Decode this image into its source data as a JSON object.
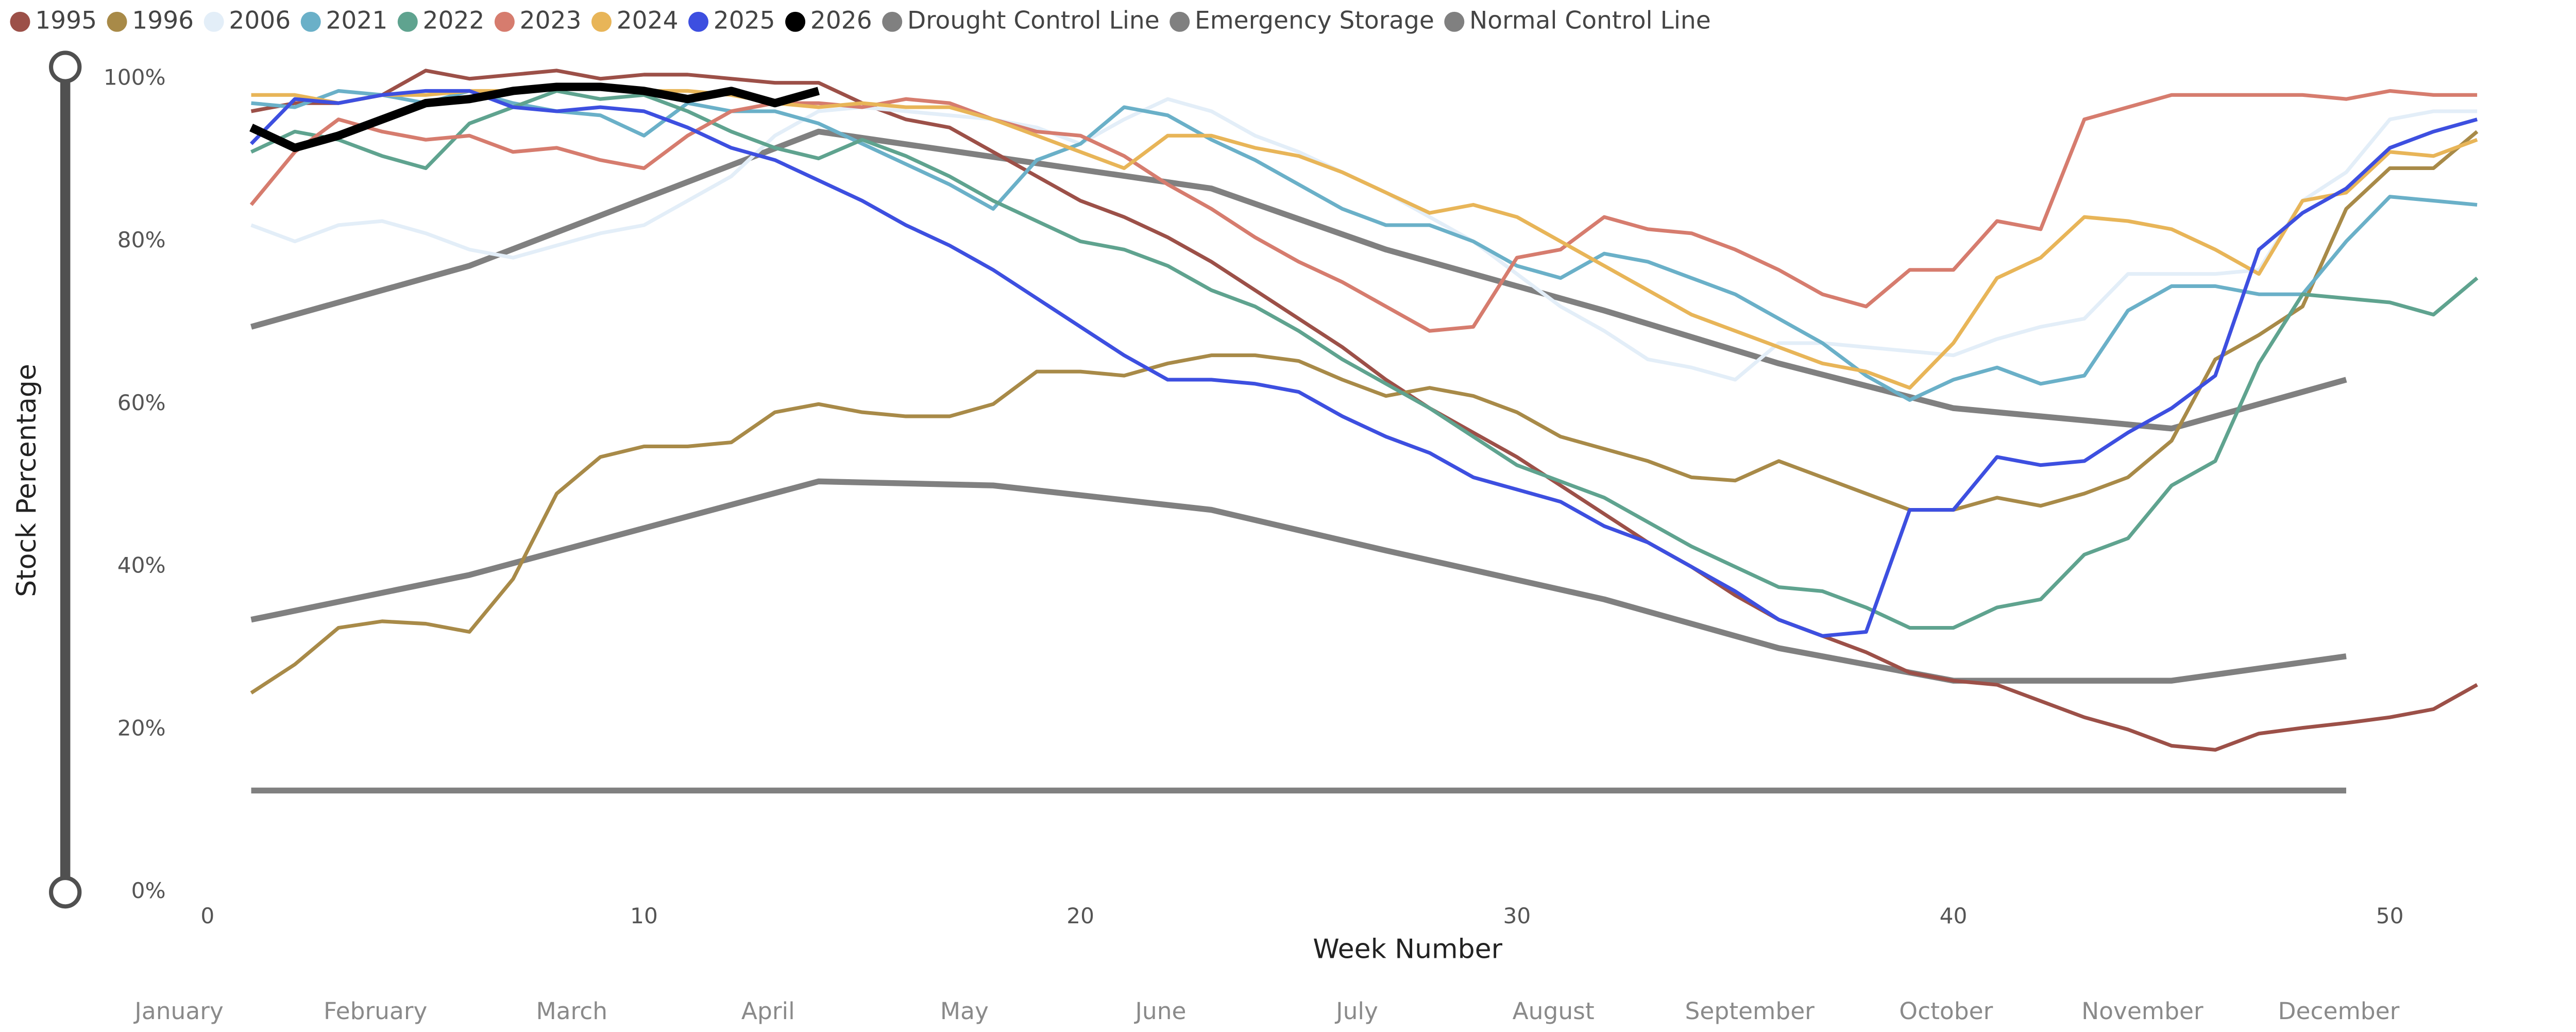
{
  "chart_data": {
    "type": "line",
    "x_label": "Week Number",
    "y_label": "Stock Percentage",
    "xlim": [
      0,
      52
    ],
    "xticks": [
      0,
      10,
      20,
      30,
      40,
      50
    ],
    "ylim": [
      0,
      100
    ],
    "yticks": [
      {
        "value": 0,
        "label": "0%"
      },
      {
        "value": 20,
        "label": "20%"
      },
      {
        "value": 40,
        "label": "40%"
      },
      {
        "value": 60,
        "label": "60%"
      },
      {
        "value": 80,
        "label": "80%"
      },
      {
        "value": 100,
        "label": "100%"
      }
    ],
    "grid": false,
    "legend": "top-left",
    "month_labels": [
      "January",
      "February",
      "March",
      "April",
      "May",
      "June",
      "July",
      "August",
      "September",
      "October",
      "November",
      "December"
    ],
    "x": [
      1,
      2,
      3,
      4,
      5,
      6,
      7,
      8,
      9,
      10,
      11,
      12,
      13,
      14,
      15,
      16,
      17,
      18,
      19,
      20,
      21,
      22,
      23,
      24,
      25,
      26,
      27,
      28,
      29,
      30,
      31,
      32,
      33,
      34,
      35,
      36,
      37,
      38,
      39,
      40,
      41,
      42,
      43,
      44,
      45,
      46,
      47,
      48,
      49,
      50,
      51,
      52
    ],
    "series": [
      {
        "name": "1995",
        "color": "#9c5048",
        "values": [
          96,
          97,
          97,
          98,
          101,
          100,
          100.5,
          101,
          100,
          100.5,
          100.5,
          100,
          99.5,
          99.5,
          97,
          95,
          94,
          91,
          88,
          85,
          83,
          80.5,
          77.5,
          74,
          70.5,
          67,
          63,
          59.5,
          56.5,
          53.5,
          50,
          46.5,
          43,
          40,
          36.5,
          33.5,
          31.5,
          29.5,
          27,
          26,
          25.5,
          23.5,
          21.5,
          20,
          18,
          17.5,
          19.5,
          20.2,
          20.8,
          21.5,
          22.5,
          25.5
        ]
      },
      {
        "name": "1996",
        "color": "#a88a48",
        "values": [
          24.5,
          28,
          32.5,
          33.3,
          33,
          32,
          38.5,
          49,
          53.5,
          54.8,
          54.8,
          55.3,
          59,
          60,
          59,
          58.5,
          58.5,
          60,
          64,
          64,
          63.5,
          65,
          66,
          66,
          65.3,
          63,
          61,
          62,
          61,
          59,
          56,
          54.5,
          53,
          51,
          50.6,
          53,
          51,
          49,
          47,
          47,
          48.5,
          47.5,
          49,
          51,
          55.5,
          65.5,
          68.5,
          72,
          84,
          89,
          89,
          93.5
        ]
      },
      {
        "name": "2006",
        "color": "#e3eef8",
        "values": [
          82,
          80,
          82,
          82.5,
          81,
          79,
          78,
          79.5,
          81,
          82,
          85,
          88,
          93,
          96,
          96.5,
          96,
          95.5,
          95,
          94,
          92,
          95,
          97.5,
          96,
          93,
          91,
          88.5,
          86,
          83,
          80,
          76,
          72,
          69,
          65.5,
          64.5,
          63,
          67.5,
          67.5,
          67,
          66.5,
          66,
          68,
          69.5,
          70.5,
          76,
          76,
          76,
          76.5,
          85,
          88.5,
          95,
          96,
          96
        ]
      },
      {
        "name": "2021",
        "color": "#6ab0c8",
        "values": [
          97,
          96.5,
          98.5,
          98,
          97,
          98.5,
          97,
          96,
          95.5,
          93,
          97,
          96,
          96,
          94.5,
          92,
          89.5,
          87,
          84,
          90,
          92,
          96.5,
          95.5,
          92.5,
          90,
          87,
          84,
          82,
          82,
          80,
          77,
          75.5,
          78.5,
          77.5,
          75.5,
          73.5,
          70.5,
          67.5,
          63.5,
          60.5,
          63,
          64.5,
          62.5,
          63.5,
          71.5,
          74.5,
          74.5,
          73.5,
          73.5,
          80,
          85.5,
          85,
          84.5
        ]
      },
      {
        "name": "2022",
        "color": "#5fa38f",
        "values": [
          91,
          93.5,
          92.5,
          90.5,
          89,
          94.5,
          96.5,
          98.5,
          97.5,
          98,
          96,
          93.5,
          91.5,
          90.2,
          92.5,
          90.5,
          88,
          85,
          82.5,
          80,
          79,
          77,
          74,
          72,
          69,
          65.5,
          62.5,
          59.5,
          56,
          52.5,
          50.5,
          48.5,
          45.5,
          42.5,
          40,
          37.5,
          37,
          35,
          32.5,
          32.5,
          35,
          36,
          41.5,
          43.5,
          50,
          53,
          65,
          73.5,
          73,
          72.5,
          71,
          75.5
        ]
      },
      {
        "name": "2023",
        "color": "#d67c6e",
        "values": [
          84.5,
          91,
          95,
          93.5,
          92.5,
          93,
          91,
          91.5,
          90,
          89,
          93,
          96,
          97,
          97,
          96.5,
          97.5,
          97,
          95,
          93.5,
          93,
          90.5,
          87,
          84,
          80.5,
          77.5,
          75,
          72,
          69,
          69.5,
          78,
          79,
          83,
          81.5,
          81,
          79,
          76.5,
          73.5,
          72,
          76.5,
          76.5,
          82.5,
          81.5,
          95,
          96.5,
          98,
          98,
          98,
          98,
          97.5,
          98.5,
          98,
          98
        ]
      },
      {
        "name": "2024",
        "color": "#e8b558",
        "values": [
          98,
          98,
          97,
          98,
          98,
          98.5,
          98.5,
          99,
          99,
          98.5,
          98.5,
          98,
          97,
          96.5,
          97,
          96.5,
          96.5,
          95,
          93,
          91,
          89,
          93,
          93,
          91.5,
          90.5,
          88.5,
          86,
          83.5,
          84.5,
          83,
          80,
          77,
          74,
          71,
          69,
          67,
          65,
          64,
          62,
          67.5,
          75.5,
          78,
          83,
          82.5,
          81.5,
          79,
          76,
          85,
          86,
          91,
          90.5,
          92.5
        ]
      },
      {
        "name": "2025",
        "color": "#3d4fe0",
        "values": [
          92,
          97.5,
          97,
          98,
          98.5,
          98.5,
          96.5,
          96,
          96.5,
          96,
          94,
          91.5,
          90,
          87.5,
          85,
          82,
          79.5,
          76.5,
          73,
          69.5,
          66,
          63,
          63,
          62.5,
          61.5,
          58.5,
          56,
          54,
          51,
          49.5,
          48,
          45,
          43,
          40,
          37,
          33.5,
          31.5,
          32,
          47,
          47,
          53.5,
          52.5,
          53,
          56.5,
          59.5,
          63.5,
          79,
          83.5,
          86.5,
          91.5,
          93.5,
          95
        ]
      },
      {
        "name": "2026",
        "color": "#000000",
        "values": [
          94,
          91.5,
          93,
          95,
          97,
          97.5,
          98.5,
          99,
          99,
          98.5,
          97.5,
          98.5,
          97,
          98.5,
          null,
          null,
          null,
          null,
          null,
          null,
          null,
          null,
          null,
          null,
          null,
          null,
          null,
          null,
          null,
          null,
          null,
          null,
          null,
          null,
          null,
          null,
          null,
          null,
          null,
          null,
          null,
          null,
          null,
          null,
          null,
          null,
          null,
          null,
          null,
          null,
          null,
          null
        ]
      },
      {
        "name": "Drought Control Line",
        "color": "#808080",
        "x": [
          1,
          6,
          14,
          18,
          23,
          27,
          32,
          36,
          40,
          45,
          49
        ],
        "values": [
          33.5,
          39,
          50.5,
          50,
          47,
          42,
          36,
          30,
          26,
          26,
          29
        ]
      },
      {
        "name": "Emergency Storage",
        "color": "#808080",
        "x": [
          1,
          49
        ],
        "values": [
          12.5,
          12.5
        ]
      },
      {
        "name": "Normal Control Line",
        "color": "#808080",
        "x": [
          1,
          6,
          14,
          23,
          27,
          32,
          36,
          40,
          45,
          49
        ],
        "values": [
          69.5,
          77,
          93.5,
          86.5,
          79,
          71.5,
          65,
          59.5,
          57,
          63
        ]
      }
    ]
  }
}
